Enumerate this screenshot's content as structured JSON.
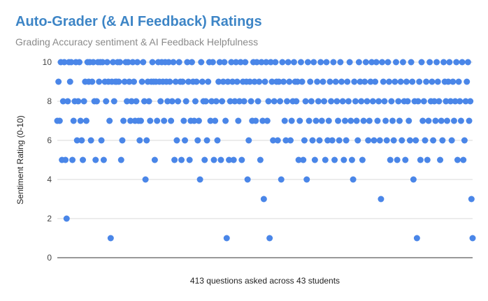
{
  "chart_data": {
    "type": "scatter",
    "title": "Auto-Grader (& AI Feedback) Ratings",
    "subtitle": "Grading Accuracy sentiment & AI Feedback Helpfulness",
    "xlabel": "413 questions asked across 43 students",
    "ylabel": "Sentiment Rating (0-10)",
    "yticks": [
      "0",
      "2",
      "4",
      "6",
      "8",
      "10"
    ],
    "ylim": [
      0,
      10
    ],
    "xlim": [
      0,
      413
    ],
    "grid": true,
    "legend": "none",
    "point_color": "#4a86e8",
    "values": [
      7,
      9,
      7,
      10,
      5,
      8,
      10,
      5,
      2,
      8,
      10,
      9,
      10,
      5,
      7,
      8,
      10,
      6,
      8,
      10,
      7,
      6,
      5,
      8,
      9,
      7,
      10,
      9,
      10,
      6,
      9,
      10,
      8,
      5,
      8,
      10,
      9,
      10,
      6,
      10,
      5,
      9,
      8,
      10,
      9,
      7,
      1,
      9,
      10,
      8,
      9,
      9,
      10,
      9,
      10,
      5,
      6,
      7,
      9,
      10,
      8,
      10,
      9,
      7,
      8,
      10,
      9,
      7,
      8,
      10,
      7,
      6,
      7,
      9,
      10,
      8,
      4,
      6,
      9,
      8,
      7,
      9,
      10,
      9,
      5,
      9,
      7,
      10,
      9,
      8,
      10,
      9,
      7,
      10,
      9,
      8,
      10,
      9,
      7,
      8,
      10,
      5,
      9,
      6,
      8,
      10,
      9,
      5,
      9,
      7,
      6,
      8,
      10,
      9,
      5,
      7,
      10,
      9,
      7,
      8,
      9,
      6,
      7,
      4,
      10,
      9,
      8,
      5,
      8,
      6,
      9,
      10,
      7,
      8,
      10,
      5,
      7,
      8,
      6,
      9,
      10,
      5,
      8,
      9,
      10,
      7,
      1,
      9,
      5,
      8,
      10,
      9,
      5,
      8,
      10,
      9,
      7,
      8,
      10,
      5,
      9,
      8,
      10,
      9,
      4,
      6,
      9,
      8,
      7,
      10,
      9,
      7,
      10,
      8,
      9,
      5,
      10,
      7,
      3,
      9,
      10,
      7,
      8,
      1,
      10,
      9,
      6,
      8,
      10,
      9,
      6,
      9,
      8,
      4,
      10,
      9,
      7,
      6,
      8,
      10,
      9,
      6,
      7,
      8,
      10,
      9,
      8,
      9,
      5,
      7,
      10,
      9,
      5,
      6,
      8,
      4,
      10,
      7,
      9,
      8,
      6,
      10,
      5,
      7,
      9,
      8,
      6,
      10,
      7,
      9,
      8,
      5,
      10,
      6,
      7,
      9,
      8,
      6,
      10,
      5,
      9,
      8,
      7,
      6,
      10,
      9,
      8,
      5,
      7,
      6,
      9,
      8,
      10,
      7,
      5,
      4,
      9,
      8,
      7,
      6,
      10,
      9,
      8,
      5,
      7,
      9,
      10,
      8,
      6,
      7,
      9,
      10,
      8,
      6,
      9,
      10,
      7,
      8,
      6,
      3,
      10,
      9,
      8,
      7,
      6,
      10,
      9,
      5,
      8,
      7,
      6,
      9,
      10,
      5,
      8,
      7,
      9,
      6,
      10,
      8,
      5,
      9,
      8,
      7,
      6,
      10,
      9,
      4,
      8,
      6,
      1,
      8,
      9,
      5,
      10,
      7,
      8,
      6,
      9,
      5,
      7,
      10,
      8,
      9,
      6,
      8,
      7,
      10,
      9,
      8,
      5,
      7,
      6,
      10,
      9,
      8,
      7,
      9,
      10,
      8,
      6,
      9,
      7,
      8,
      10,
      5,
      9,
      8,
      7,
      10,
      5,
      6,
      8,
      9,
      10,
      7,
      8,
      3,
      1
    ]
  }
}
